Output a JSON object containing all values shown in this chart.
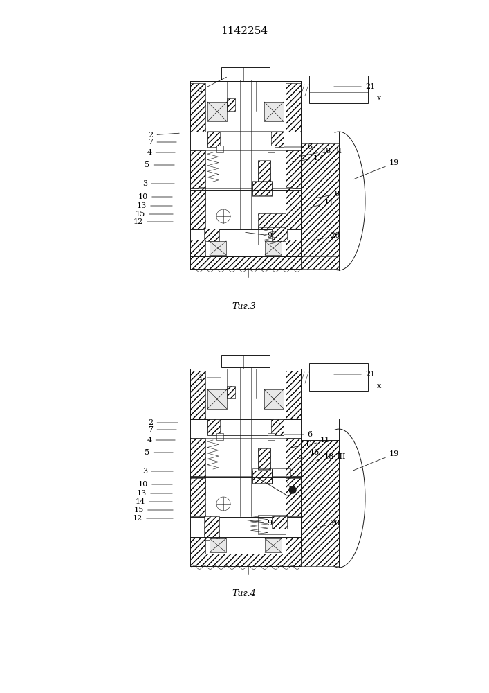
{
  "title": "1142254",
  "fig3_caption": "Τиг.3",
  "fig4_caption": "Τиг.4",
  "bg_color": "#ffffff",
  "line_color": "#1a1a1a",
  "title_fontsize": 11,
  "caption_fontsize": 9,
  "label_fontsize": 8
}
